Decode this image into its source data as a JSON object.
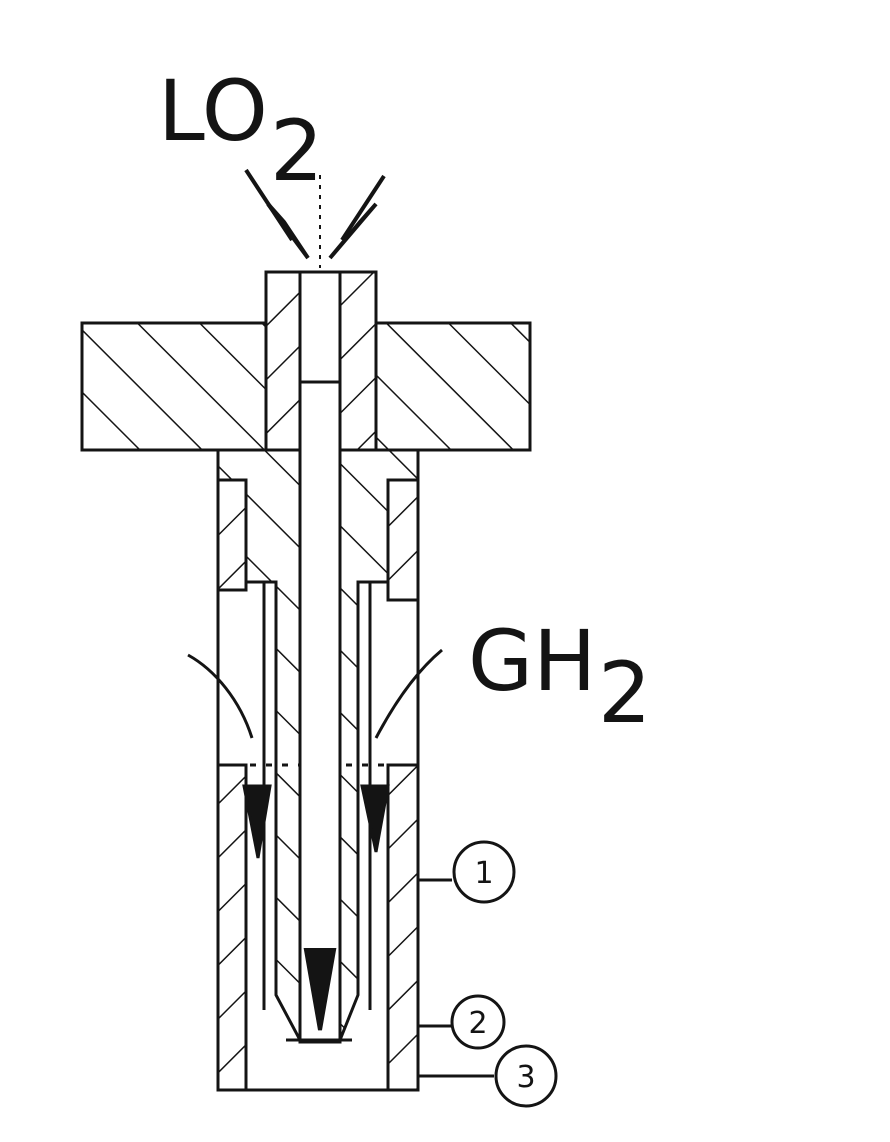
{
  "diagram": {
    "labels": {
      "oxidizer": "LO",
      "oxidizer_sub": "2",
      "fuel": "GH",
      "fuel_sub": "2"
    },
    "callouts": [
      "1",
      "2",
      "3"
    ],
    "colors": {
      "ink": "#141414",
      "paper": "#ffffff"
    }
  }
}
